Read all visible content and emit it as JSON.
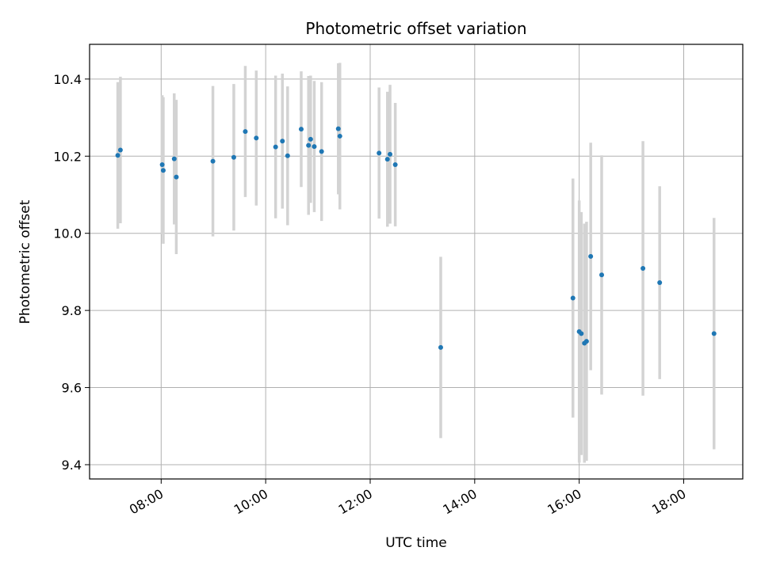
{
  "chart_data": {
    "type": "scatter",
    "title": "Photometric offset variation",
    "xlabel": "UTC time",
    "ylabel": "Photometric offset",
    "x_unit": "hours",
    "xlim": [
      6.63,
      19.13
    ],
    "ylim": [
      9.363,
      10.49
    ],
    "xticks": [
      8,
      10,
      12,
      14,
      16,
      18
    ],
    "xtick_labels": [
      "08:00",
      "10:00",
      "12:00",
      "14:00",
      "16:00",
      "18:00"
    ],
    "yticks": [
      9.4,
      9.6,
      9.8,
      10.0,
      10.2,
      10.4
    ],
    "ytick_labels": [
      "9.4",
      "9.6",
      "9.8",
      "10.0",
      "10.2",
      "10.4"
    ],
    "grid": true,
    "colors": {
      "point": "#1f77b4",
      "errorbar": "#d3d3d3",
      "grid": "#b0b0b0"
    },
    "series": [
      {
        "points": [
          {
            "x": 7.17,
            "y": 10.202,
            "err": 0.19
          },
          {
            "x": 7.22,
            "y": 10.216,
            "err": 0.19
          },
          {
            "x": 8.02,
            "y": 10.178,
            "err": 0.18
          },
          {
            "x": 8.04,
            "y": 10.163,
            "err": 0.19
          },
          {
            "x": 8.25,
            "y": 10.193,
            "err": 0.17
          },
          {
            "x": 8.29,
            "y": 10.146,
            "err": 0.2
          },
          {
            "x": 8.99,
            "y": 10.187,
            "err": 0.195
          },
          {
            "x": 9.39,
            "y": 10.197,
            "err": 0.19
          },
          {
            "x": 9.61,
            "y": 10.264,
            "err": 0.17
          },
          {
            "x": 9.82,
            "y": 10.247,
            "err": 0.175
          },
          {
            "x": 10.19,
            "y": 10.224,
            "err": 0.185
          },
          {
            "x": 10.32,
            "y": 10.239,
            "err": 0.175
          },
          {
            "x": 10.42,
            "y": 10.201,
            "err": 0.18
          },
          {
            "x": 10.68,
            "y": 10.27,
            "err": 0.15
          },
          {
            "x": 10.82,
            "y": 10.228,
            "err": 0.18
          },
          {
            "x": 10.86,
            "y": 10.244,
            "err": 0.165
          },
          {
            "x": 10.93,
            "y": 10.225,
            "err": 0.17
          },
          {
            "x": 11.07,
            "y": 10.212,
            "err": 0.18
          },
          {
            "x": 11.39,
            "y": 10.271,
            "err": 0.17
          },
          {
            "x": 11.42,
            "y": 10.252,
            "err": 0.19
          },
          {
            "x": 12.17,
            "y": 10.208,
            "err": 0.17
          },
          {
            "x": 12.33,
            "y": 10.192,
            "err": 0.175
          },
          {
            "x": 12.38,
            "y": 10.205,
            "err": 0.18
          },
          {
            "x": 12.48,
            "y": 10.178,
            "err": 0.16
          },
          {
            "x": 13.35,
            "y": 9.704,
            "err": 0.235
          },
          {
            "x": 15.88,
            "y": 9.832,
            "err": 0.31
          },
          {
            "x": 16.0,
            "y": 9.745,
            "err": 0.34
          },
          {
            "x": 16.04,
            "y": 9.74,
            "err": 0.315
          },
          {
            "x": 16.1,
            "y": 9.715,
            "err": 0.31
          },
          {
            "x": 16.14,
            "y": 9.72,
            "err": 0.31
          },
          {
            "x": 16.22,
            "y": 9.94,
            "err": 0.295
          },
          {
            "x": 16.43,
            "y": 9.892,
            "err": 0.31
          },
          {
            "x": 17.22,
            "y": 9.909,
            "err": 0.33
          },
          {
            "x": 17.54,
            "y": 9.872,
            "err": 0.25
          },
          {
            "x": 18.58,
            "y": 9.74,
            "err": 0.3
          }
        ]
      }
    ]
  }
}
